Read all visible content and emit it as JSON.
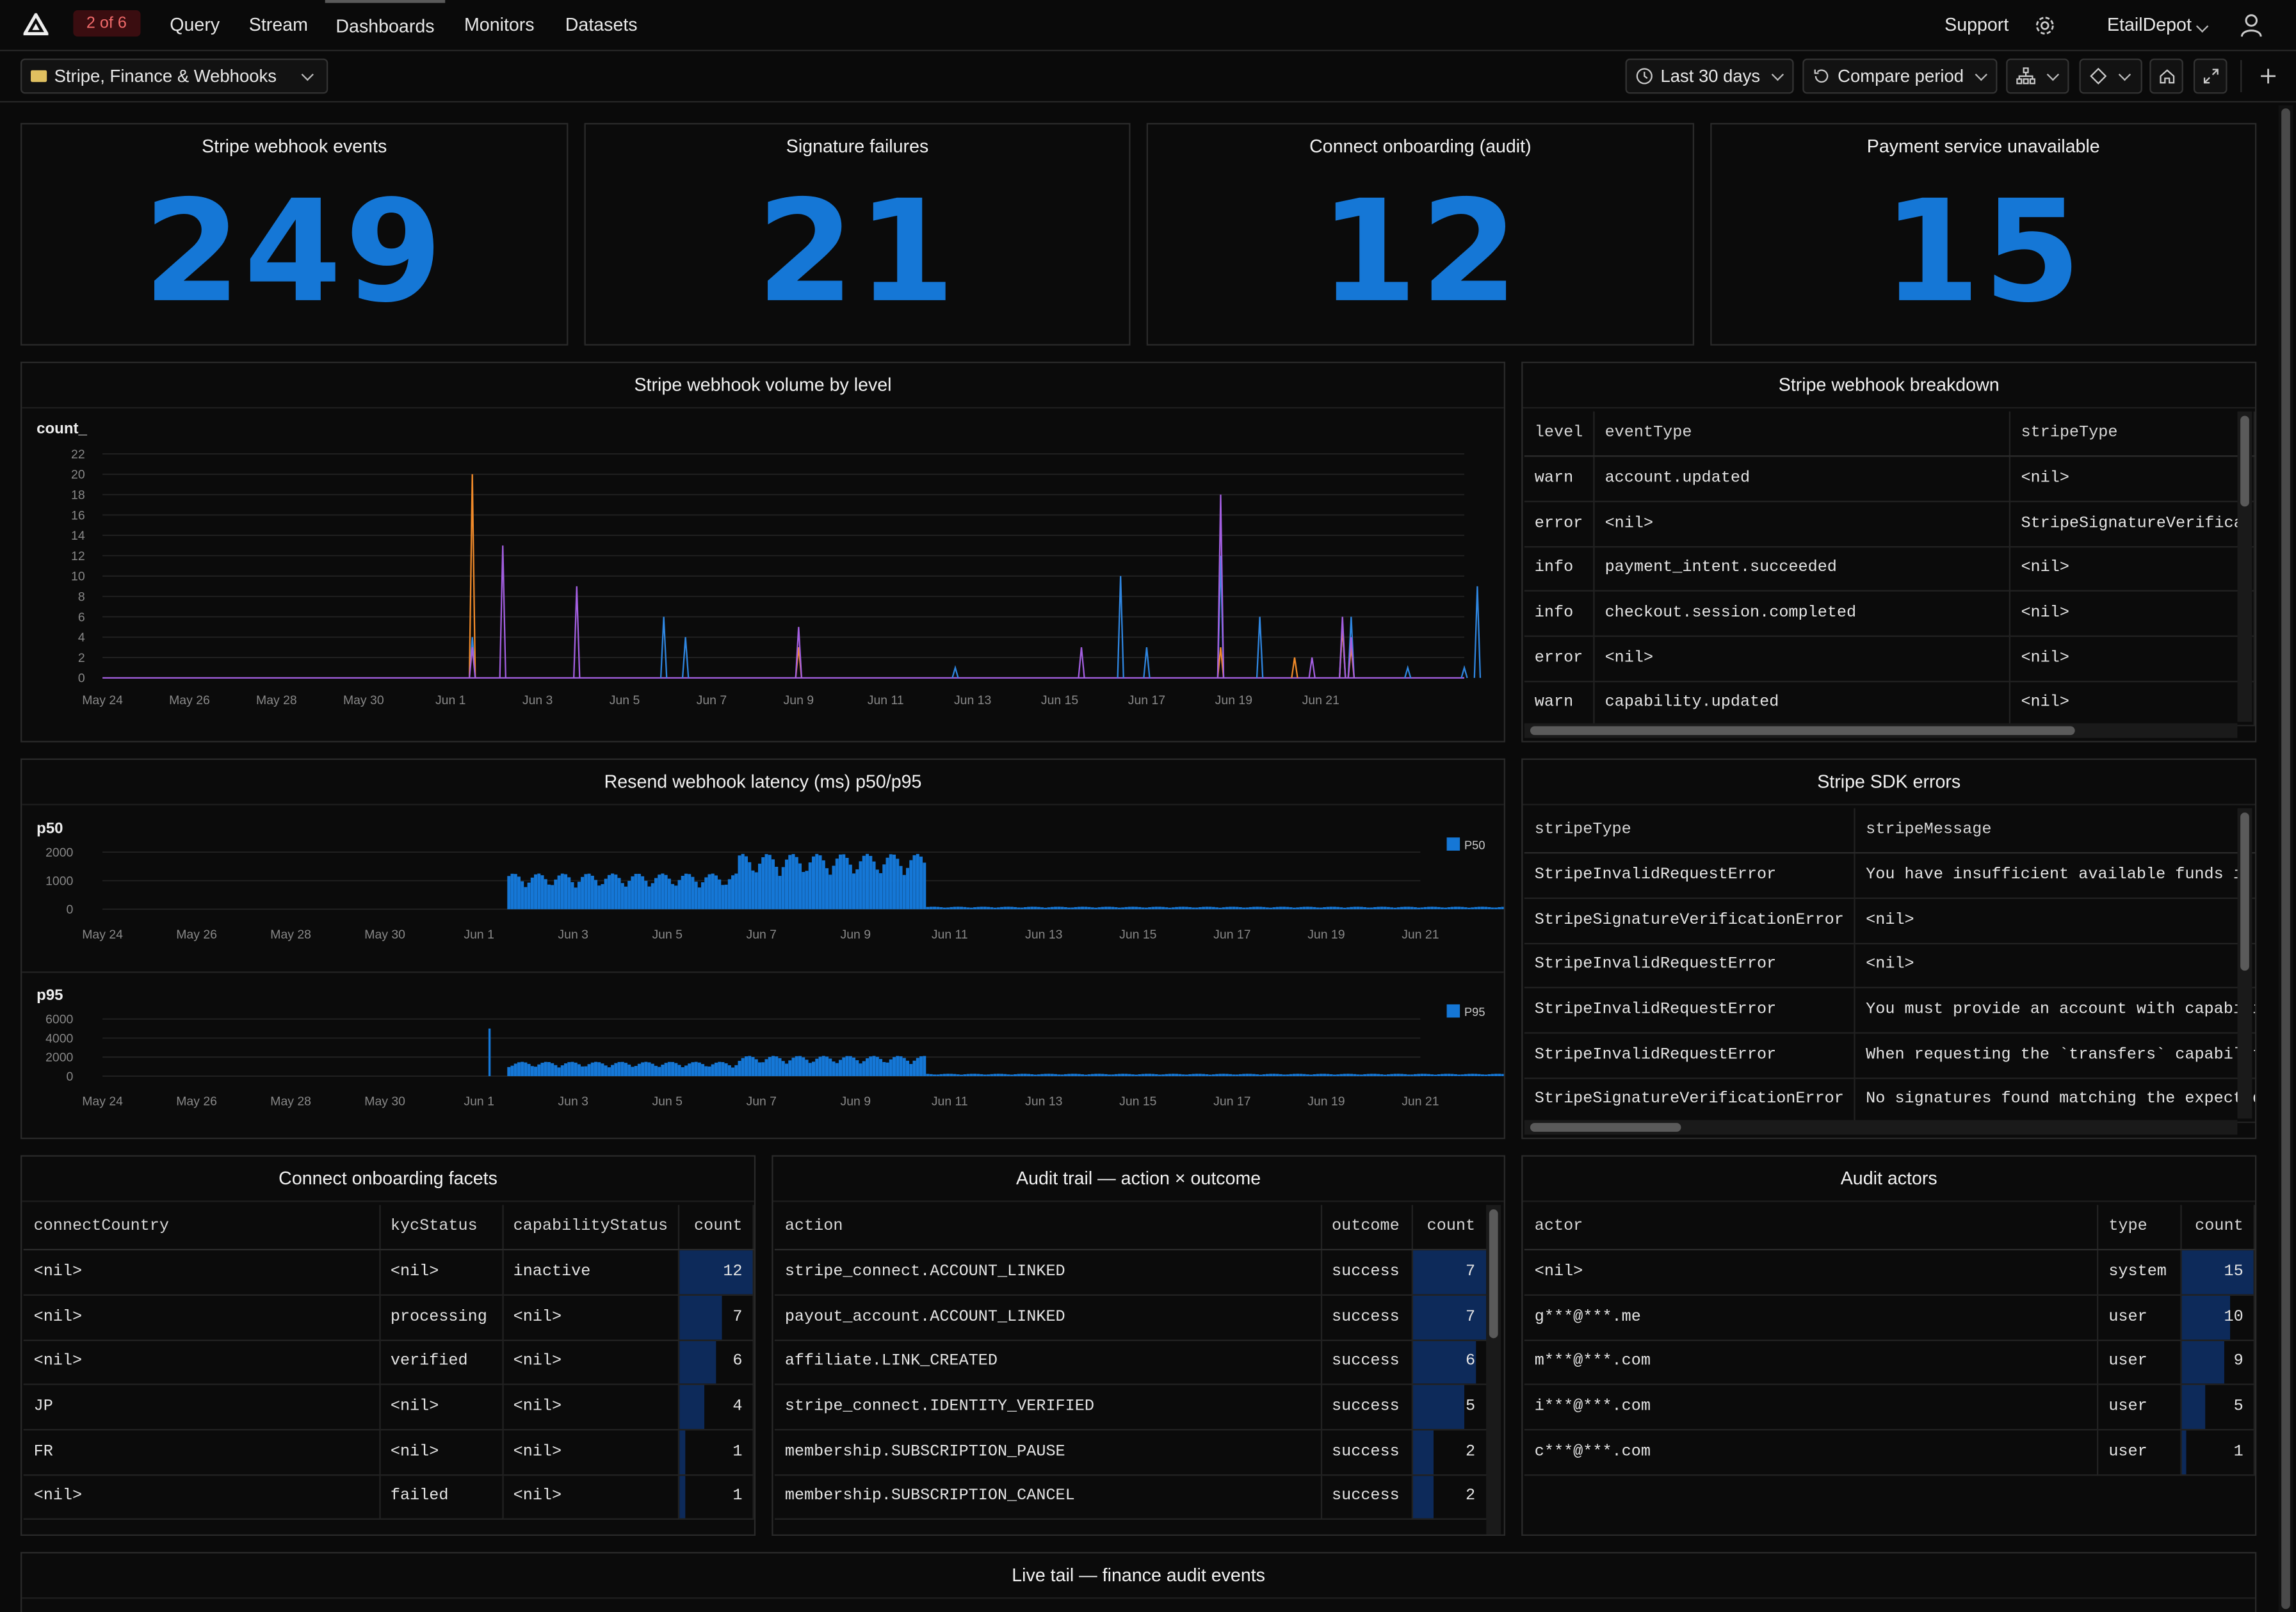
{
  "topbar": {
    "pager": "2 of 6",
    "nav": [
      "Query",
      "Stream",
      "Dashboards",
      "Monitors",
      "Datasets"
    ],
    "active_nav": "Dashboards",
    "support": "Support",
    "org": "EtailDepot",
    "icons": [
      "logo-icon",
      "gear-icon",
      "user-icon"
    ]
  },
  "toolbar": {
    "dashboard": "Stripe, Finance & Webhooks",
    "time_range": "Last 30 days",
    "compare": "Compare period"
  },
  "stats": [
    {
      "title": "Stripe webhook events",
      "value": "249"
    },
    {
      "title": "Signature failures",
      "value": "21"
    },
    {
      "title": "Connect onboarding (audit)",
      "value": "12"
    },
    {
      "title": "Payment service unavailable",
      "value": "15"
    }
  ],
  "volume_chart": {
    "title": "Stripe webhook volume by level"
  },
  "latency_chart": {
    "title": "Resend webhook latency (ms) p50/p95"
  },
  "breakdown": {
    "title": "Stripe webhook breakdown",
    "columns": [
      "level",
      "eventType",
      "stripeType"
    ],
    "rows": [
      [
        "warn",
        "account.updated",
        "<nil>"
      ],
      [
        "error",
        "<nil>",
        "StripeSignatureVerifica"
      ],
      [
        "info",
        "payment_intent.succeeded",
        "<nil>"
      ],
      [
        "info",
        "checkout.session.completed",
        "<nil>"
      ],
      [
        "error",
        "<nil>",
        "<nil>"
      ],
      [
        "warn",
        "capability.updated",
        "<nil>"
      ]
    ]
  },
  "sdk_errors": {
    "title": "Stripe SDK errors",
    "columns": [
      "stripeType",
      "stripeMessage"
    ],
    "rows": [
      [
        "StripeInvalidRequestError",
        "You have insufficient available funds in y"
      ],
      [
        "StripeSignatureVerificationError",
        "<nil>"
      ],
      [
        "StripeInvalidRequestError",
        "<nil>"
      ],
      [
        "StripeInvalidRequestError",
        "You must provide an account with capabilit"
      ],
      [
        "StripeInvalidRequestError",
        "When requesting the `transfers` capability"
      ],
      [
        "StripeSignatureVerificationError",
        "No signatures found matching the expected"
      ]
    ]
  },
  "connect_facets": {
    "title": "Connect onboarding facets",
    "columns": [
      "connectCountry",
      "kycStatus",
      "capabilityStatus",
      "count"
    ],
    "rows": [
      [
        "<nil>",
        "<nil>",
        "inactive",
        "12"
      ],
      [
        "<nil>",
        "processing",
        "<nil>",
        "7"
      ],
      [
        "<nil>",
        "verified",
        "<nil>",
        "6"
      ],
      [
        "JP",
        "<nil>",
        "<nil>",
        "4"
      ],
      [
        "FR",
        "<nil>",
        "<nil>",
        "1"
      ],
      [
        "<nil>",
        "failed",
        "<nil>",
        "1"
      ]
    ]
  },
  "audit_trail": {
    "title": "Audit trail — action × outcome",
    "columns": [
      "action",
      "outcome",
      "count"
    ],
    "rows": [
      [
        "stripe_connect.ACCOUNT_LINKED",
        "success",
        "7"
      ],
      [
        "payout_account.ACCOUNT_LINKED",
        "success",
        "7"
      ],
      [
        "affiliate.LINK_CREATED",
        "success",
        "6"
      ],
      [
        "stripe_connect.IDENTITY_VERIFIED",
        "success",
        "5"
      ],
      [
        "membership.SUBSCRIPTION_PAUSE",
        "success",
        "2"
      ],
      [
        "membership.SUBSCRIPTION_CANCEL",
        "success",
        "2"
      ]
    ]
  },
  "audit_actors": {
    "title": "Audit actors",
    "columns": [
      "actor",
      "type",
      "count"
    ],
    "rows": [
      [
        "<nil>",
        "system",
        "15"
      ],
      [
        "g***@***.me",
        "user",
        "10"
      ],
      [
        "m***@***.com",
        "user",
        "9"
      ],
      [
        "i***@***.com",
        "user",
        "5"
      ],
      [
        "c***@***.com",
        "user",
        "1"
      ]
    ]
  },
  "live_tail": {
    "title": "Live tail — finance audit events"
  },
  "chart_data": [
    {
      "type": "line",
      "title": "Stripe webhook volume by level",
      "ylabel": "count_",
      "ylim": [
        0,
        22
      ],
      "yticks": [
        "0",
        "2",
        "4",
        "6",
        "8",
        "10",
        "12",
        "14",
        "16",
        "18",
        "20",
        "22"
      ],
      "xticks": [
        "May 24",
        "May 26",
        "May 28",
        "May 30",
        "Jun 1",
        "Jun 3",
        "Jun 5",
        "Jun 7",
        "Jun 9",
        "Jun 11",
        "Jun 13",
        "Jun 15",
        "Jun 17",
        "Jun 19",
        "Jun 21"
      ],
      "colors": {
        "info": "#2f86e0",
        "warn": "#f08a2a",
        "error": "#a35fe0"
      },
      "spikes": [
        {
          "day": 8.5,
          "info": 4,
          "warn": 20,
          "error": 3
        },
        {
          "day": 9.2,
          "info": 0,
          "warn": 0,
          "error": 13
        },
        {
          "day": 10.9,
          "info": 0,
          "warn": 0,
          "error": 9
        },
        {
          "day": 12.9,
          "info": 6,
          "warn": 0,
          "error": 0
        },
        {
          "day": 13.4,
          "info": 4,
          "warn": 0,
          "error": 0
        },
        {
          "day": 16.0,
          "info": 0,
          "warn": 3,
          "error": 5
        },
        {
          "day": 19.6,
          "info": 1,
          "warn": 0,
          "error": 0
        },
        {
          "day": 22.5,
          "info": 0,
          "warn": 0,
          "error": 3
        },
        {
          "day": 23.4,
          "info": 10,
          "warn": 0,
          "error": 0
        },
        {
          "day": 24.0,
          "info": 3,
          "warn": 0,
          "error": 0
        },
        {
          "day": 25.7,
          "info": 12,
          "warn": 3,
          "error": 18
        },
        {
          "day": 26.6,
          "info": 6,
          "warn": 0,
          "error": 0
        },
        {
          "day": 27.4,
          "info": 0,
          "warn": 2,
          "error": 0
        },
        {
          "day": 27.8,
          "info": 0,
          "warn": 0,
          "error": 2
        },
        {
          "day": 28.5,
          "info": 5,
          "warn": 5,
          "error": 6
        },
        {
          "day": 28.7,
          "info": 6,
          "warn": 3,
          "error": 4
        },
        {
          "day": 30.0,
          "info": 1,
          "warn": 0,
          "error": 0
        },
        {
          "day": 31.3,
          "info": 1,
          "warn": 0,
          "error": 0
        },
        {
          "day": 31.6,
          "info": 9,
          "warn": 0,
          "error": 0
        }
      ]
    },
    {
      "type": "bar",
      "title": "p50",
      "series": [
        {
          "name": "P50"
        }
      ],
      "ylim": [
        0,
        2000
      ],
      "yticks": [
        "0",
        "1000",
        "2000"
      ],
      "xticks": [
        "May 24",
        "May 26",
        "May 28",
        "May 30",
        "Jun 1",
        "Jun 3",
        "Jun 5",
        "Jun 7",
        "Jun 9",
        "Jun 11",
        "Jun 13",
        "Jun 15",
        "Jun 17",
        "Jun 19",
        "Jun 21"
      ],
      "segments": [
        {
          "from": 8.6,
          "to": 13.5,
          "value": 1000
        },
        {
          "from": 13.5,
          "to": 17.5,
          "value": 1550
        },
        {
          "from": 17.5,
          "to": 30.5,
          "value": 70
        }
      ]
    },
    {
      "type": "bar",
      "title": "p95",
      "series": [
        {
          "name": "P95"
        }
      ],
      "ylim": [
        0,
        6000
      ],
      "yticks": [
        "0",
        "2000",
        "4000",
        "6000"
      ],
      "xticks": [
        "May 24",
        "May 26",
        "May 28",
        "May 30",
        "Jun 1",
        "Jun 3",
        "Jun 5",
        "Jun 7",
        "Jun 9",
        "Jun 11",
        "Jun 13",
        "Jun 15",
        "Jun 17",
        "Jun 19",
        "Jun 21"
      ],
      "segments": [
        {
          "from": 8.6,
          "to": 13.5,
          "value": 1200
        },
        {
          "from": 13.5,
          "to": 17.5,
          "value": 1700
        },
        {
          "from": 17.5,
          "to": 30.5,
          "value": 200
        }
      ],
      "spike": {
        "day": 8.2,
        "value": 5000
      }
    }
  ]
}
